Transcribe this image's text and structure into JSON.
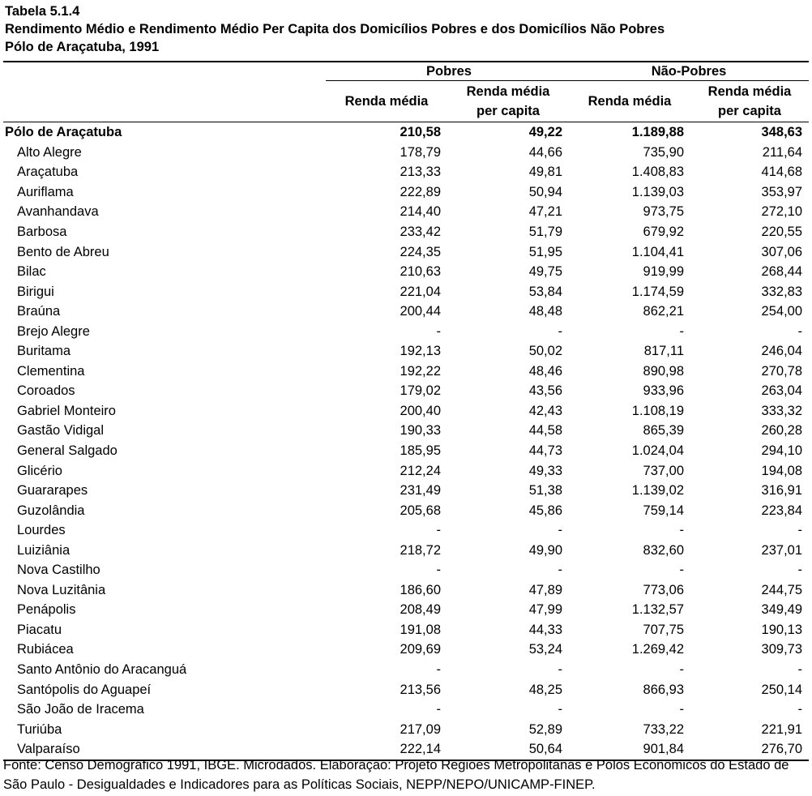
{
  "title": {
    "line1": "Tabela 5.1.4",
    "line2": "Rendimento Médio e Rendimento Médio Per Capita dos Domicílios Pobres e dos Domicílios Não Pobres",
    "line3": "Pólo de Araçatuba, 1991"
  },
  "header": {
    "group_pobres": "Pobres",
    "group_nao_pobres": "Não-Pobres",
    "col_renda_media": "Renda média",
    "col_per_capita_line1": "Renda média",
    "col_per_capita_line2": "per capita"
  },
  "total": {
    "name": "Pólo de Araçatuba",
    "values": [
      "210,58",
      "49,22",
      "1.189,88",
      "348,63"
    ]
  },
  "rows": [
    {
      "name": "Alto Alegre",
      "values": [
        "178,79",
        "44,66",
        "735,90",
        "211,64"
      ]
    },
    {
      "name": "Araçatuba",
      "values": [
        "213,33",
        "49,81",
        "1.408,83",
        "414,68"
      ]
    },
    {
      "name": "Auriflama",
      "values": [
        "222,89",
        "50,94",
        "1.139,03",
        "353,97"
      ]
    },
    {
      "name": "Avanhandava",
      "values": [
        "214,40",
        "47,21",
        "973,75",
        "272,10"
      ]
    },
    {
      "name": "Barbosa",
      "values": [
        "233,42",
        "51,79",
        "679,92",
        "220,55"
      ]
    },
    {
      "name": "Bento de Abreu",
      "values": [
        "224,35",
        "51,95",
        "1.104,41",
        "307,06"
      ]
    },
    {
      "name": "Bilac",
      "values": [
        "210,63",
        "49,75",
        "919,99",
        "268,44"
      ]
    },
    {
      "name": "Birigui",
      "values": [
        "221,04",
        "53,84",
        "1.174,59",
        "332,83"
      ]
    },
    {
      "name": "Braúna",
      "values": [
        "200,44",
        "48,48",
        "862,21",
        "254,00"
      ]
    },
    {
      "name": "Brejo Alegre",
      "values": [
        "-",
        "-",
        "-",
        "-"
      ]
    },
    {
      "name": "Buritama",
      "values": [
        "192,13",
        "50,02",
        "817,11",
        "246,04"
      ]
    },
    {
      "name": "Clementina",
      "values": [
        "192,22",
        "48,46",
        "890,98",
        "270,78"
      ]
    },
    {
      "name": "Coroados",
      "values": [
        "179,02",
        "43,56",
        "933,96",
        "263,04"
      ]
    },
    {
      "name": "Gabriel Monteiro",
      "values": [
        "200,40",
        "42,43",
        "1.108,19",
        "333,32"
      ]
    },
    {
      "name": "Gastão Vidigal",
      "values": [
        "190,33",
        "44,58",
        "865,39",
        "260,28"
      ]
    },
    {
      "name": "General Salgado",
      "values": [
        "185,95",
        "44,73",
        "1.024,04",
        "294,10"
      ]
    },
    {
      "name": "Glicério",
      "values": [
        "212,24",
        "49,33",
        "737,00",
        "194,08"
      ]
    },
    {
      "name": "Guararapes",
      "values": [
        "231,49",
        "51,38",
        "1.139,02",
        "316,91"
      ]
    },
    {
      "name": "Guzolândia",
      "values": [
        "205,68",
        "45,86",
        "759,14",
        "223,84"
      ]
    },
    {
      "name": "Lourdes",
      "values": [
        "-",
        "-",
        "-",
        "-"
      ]
    },
    {
      "name": "Luiziânia",
      "values": [
        "218,72",
        "49,90",
        "832,60",
        "237,01"
      ]
    },
    {
      "name": "Nova Castilho",
      "values": [
        "-",
        "-",
        "-",
        "-"
      ]
    },
    {
      "name": "Nova Luzitânia",
      "values": [
        "186,60",
        "47,89",
        "773,06",
        "244,75"
      ]
    },
    {
      "name": "Penápolis",
      "values": [
        "208,49",
        "47,99",
        "1.132,57",
        "349,49"
      ]
    },
    {
      "name": "Piacatu",
      "values": [
        "191,08",
        "44,33",
        "707,75",
        "190,13"
      ]
    },
    {
      "name": "Rubiácea",
      "values": [
        "209,69",
        "53,24",
        "1.269,42",
        "309,73"
      ]
    },
    {
      "name": "Santo Antônio do Aracanguá",
      "values": [
        "-",
        "-",
        "-",
        "-"
      ]
    },
    {
      "name": "Santópolis do Aguapeí",
      "values": [
        "213,56",
        "48,25",
        "866,93",
        "250,14"
      ]
    },
    {
      "name": "São João de Iracema",
      "values": [
        "-",
        "-",
        "-",
        "-"
      ]
    },
    {
      "name": "Turiúba",
      "values": [
        "217,09",
        "52,89",
        "733,22",
        "221,91"
      ]
    },
    {
      "name": "Valparaíso",
      "values": [
        "222,14",
        "50,64",
        "901,84",
        "276,70"
      ]
    }
  ],
  "source": "Fonte: Censo Demográfico 1991, IBGE. Microdados. Elaboração: Projeto Regiões Metropolitanas e Pólos Econômicos do Estado de São Paulo - Desigualdades e Indicadores para as Políticas Sociais, NEPP/NEPO/UNICAMP-FINEP."
}
